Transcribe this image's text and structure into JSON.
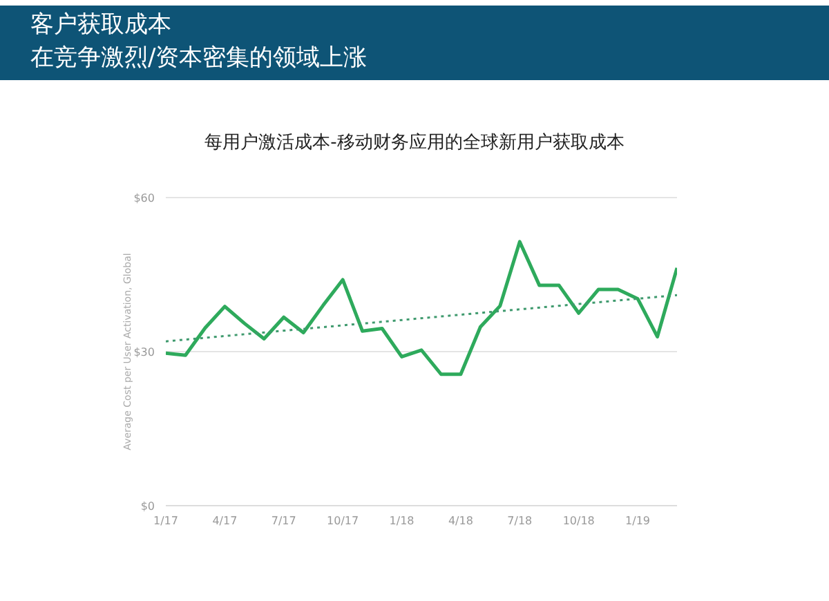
{
  "chart_data": {
    "type": "line",
    "title": "客户获取成本",
    "subtitle": "在竞争激烈/资本密集的领域上涨",
    "annotations": [
      "每用户激活成本-移动财务应用的全球新用户获取成本"
    ],
    "ylabel": "Average Cost per User Activation, Global",
    "x": [
      "2017-01",
      "2017-02",
      "2017-03",
      "2017-04",
      "2017-05",
      "2017-06",
      "2017-07",
      "2017-08",
      "2017-09",
      "2017-10",
      "2017-11",
      "2017-12",
      "2018-01",
      "2018-02",
      "2018-03",
      "2018-04",
      "2018-05",
      "2018-06",
      "2018-07",
      "2018-08",
      "2018-09",
      "2018-10",
      "2018-11",
      "2018-12",
      "2019-01",
      "2019-02",
      "2019-03"
    ],
    "series": [
      {
        "color": "#2eaa5c",
        "values": [
          29.7,
          29.3,
          34.6,
          38.8,
          35.5,
          32.5,
          36.7,
          33.7,
          39.0,
          44.0,
          34.0,
          34.5,
          29.0,
          30.3,
          25.6,
          25.6,
          34.8,
          38.9,
          51.4,
          42.9,
          42.9,
          37.5,
          42.1,
          42.1,
          40.3,
          32.9,
          46.3
        ]
      },
      {
        "type": "line",
        "color": "#3f9a6e",
        "line_style": "dotted",
        "x": [
          "2017-01",
          "2019-03"
        ],
        "values": [
          32.0,
          41.0
        ]
      }
    ],
    "xlim": [
      "2017-01",
      "2019-03"
    ],
    "xticks": [
      {
        "value": "2017-01",
        "label": "1/17"
      },
      {
        "value": "2017-04",
        "label": "4/17"
      },
      {
        "value": "2017-07",
        "label": "7/17"
      },
      {
        "value": "2017-10",
        "label": "10/17"
      },
      {
        "value": "2018-01",
        "label": "1/18"
      },
      {
        "value": "2018-04",
        "label": "4/18"
      },
      {
        "value": "2018-07",
        "label": "7/18"
      },
      {
        "value": "2018-10",
        "label": "10/18"
      },
      {
        "value": "2019-01",
        "label": "1/19"
      }
    ],
    "ylim": [
      0,
      60
    ],
    "yticks": [
      {
        "value": 0,
        "label": "$0"
      },
      {
        "value": 30,
        "label": "$30"
      },
      {
        "value": 60,
        "label": "$60"
      }
    ],
    "grid": "y",
    "marker": "none",
    "line_style": "solid"
  }
}
